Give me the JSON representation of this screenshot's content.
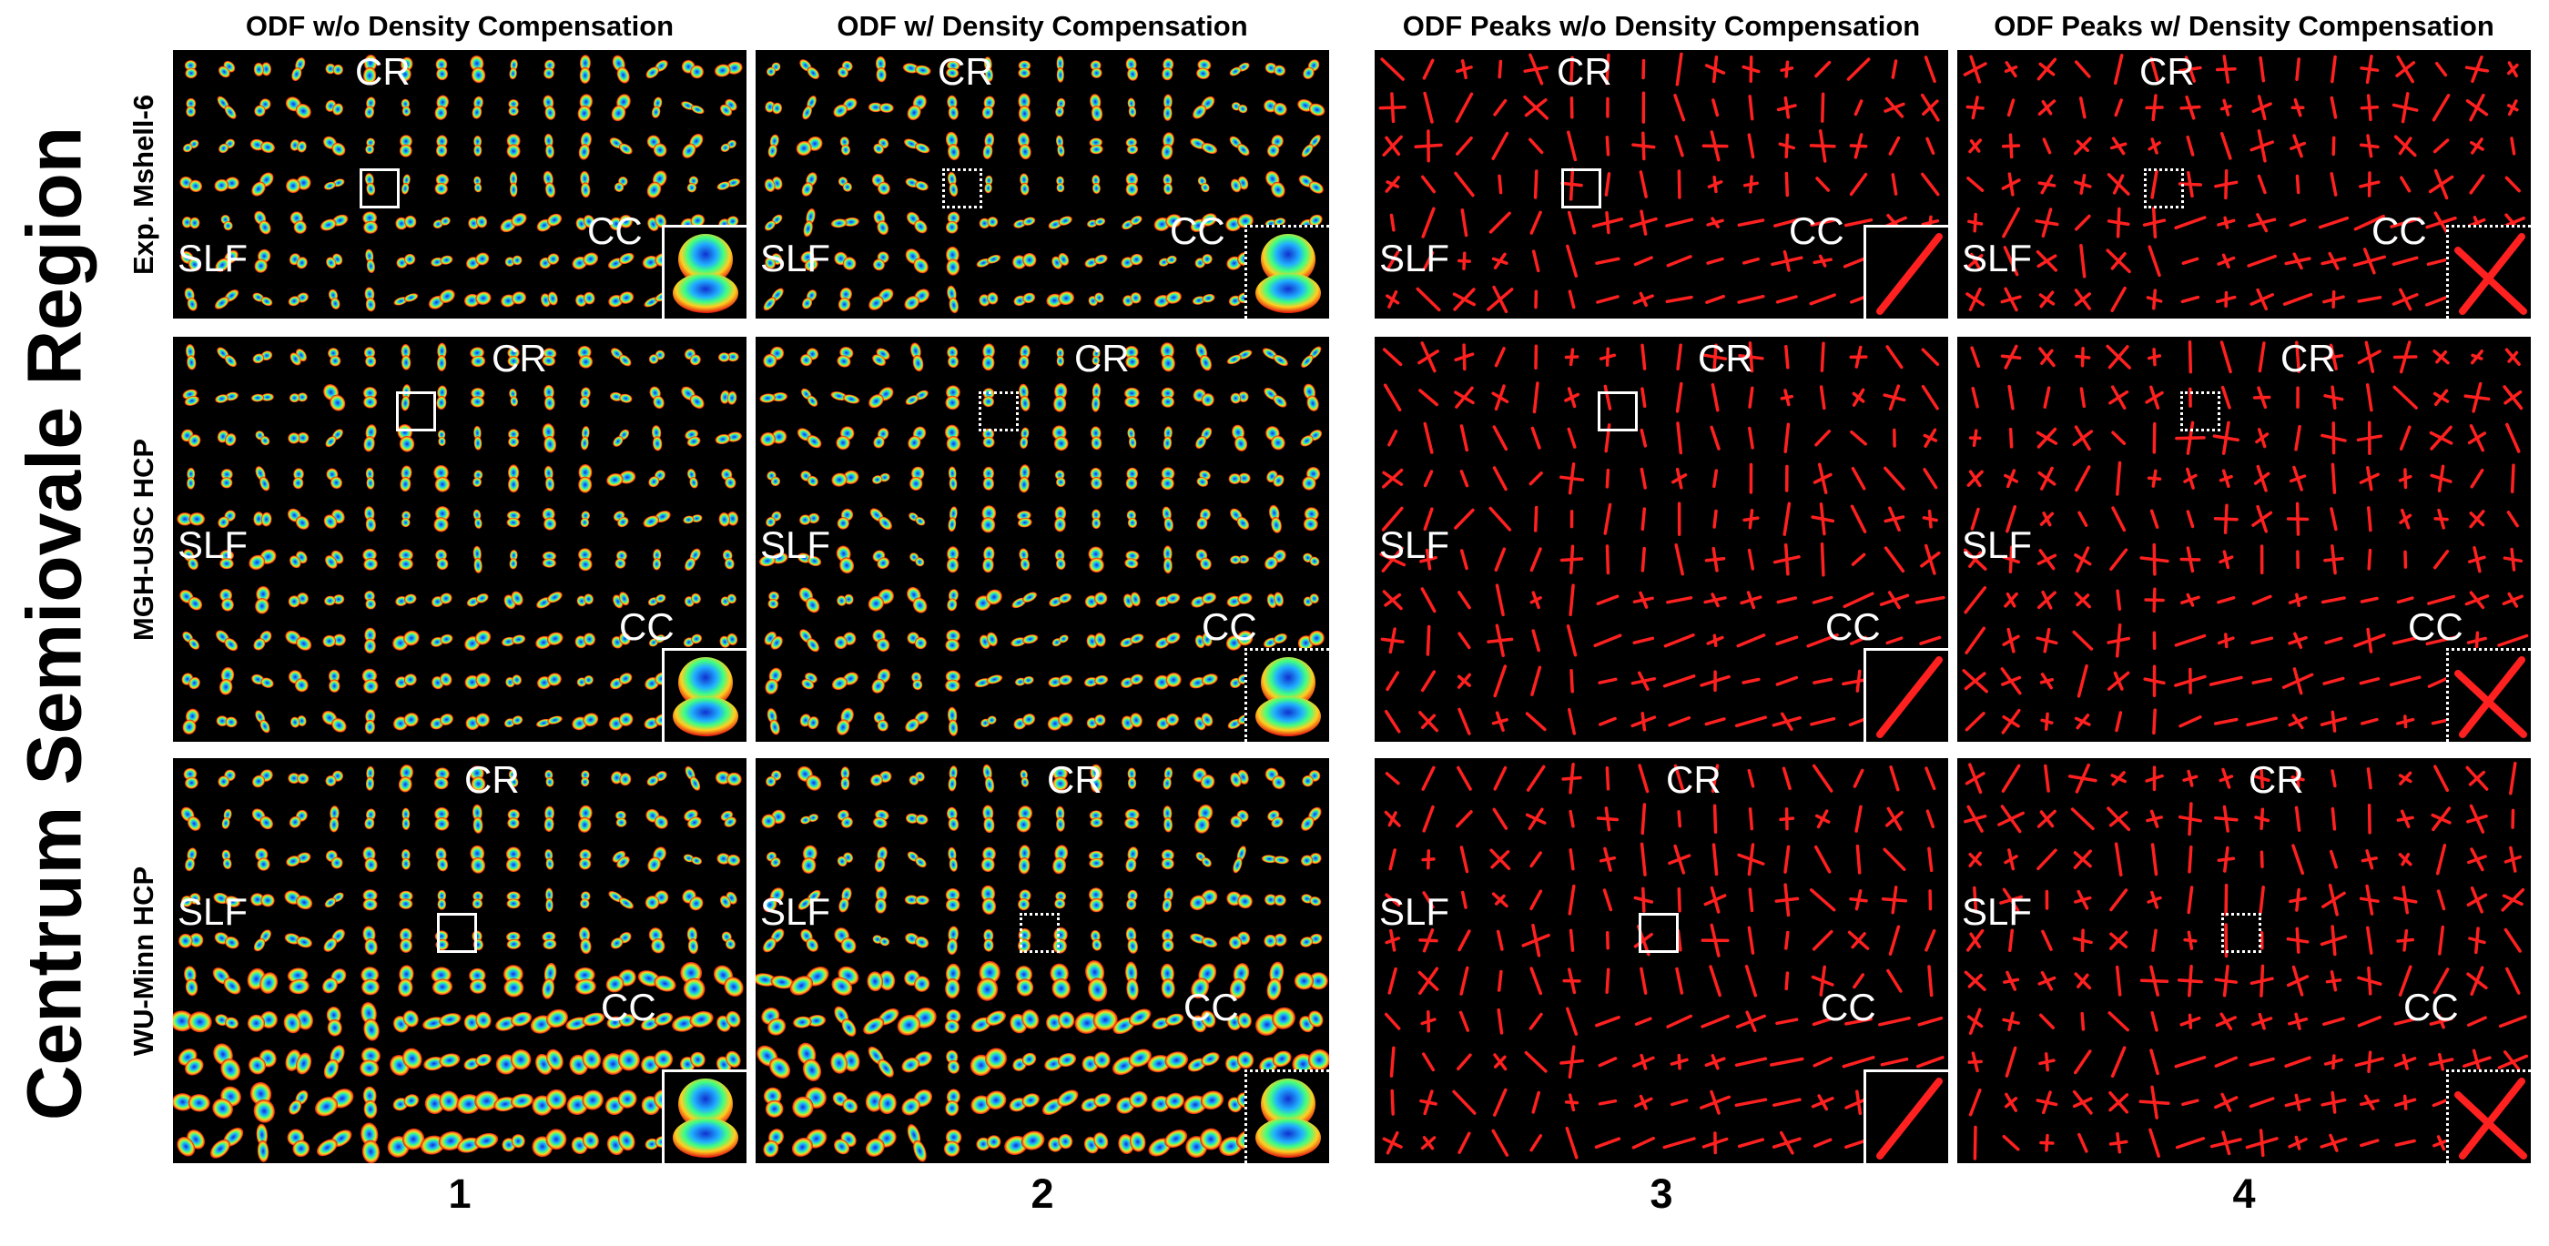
{
  "figure": {
    "big_title": "Centrum Semiovale Region",
    "columns": [
      {
        "title": "ODF w/o Density Compensation",
        "number": "1",
        "kind": "odf",
        "compensated": false
      },
      {
        "title": "ODF w/ Density Compensation",
        "number": "2",
        "kind": "odf",
        "compensated": true
      },
      {
        "title": "ODF Peaks w/o Density Compensation",
        "number": "3",
        "kind": "peaks",
        "compensated": false
      },
      {
        "title": "ODF Peaks w/ Density Compensation",
        "number": "4",
        "kind": "peaks",
        "compensated": true
      }
    ],
    "rows": [
      {
        "label": "Exp. Mshell-6"
      },
      {
        "label": "MGH-USC HCP"
      },
      {
        "label": "WU-Minn HCP"
      }
    ],
    "region_labels": {
      "cr": "CR",
      "slf": "SLF",
      "cc": "CC"
    },
    "colors": {
      "peak": "#ff2020",
      "panel_bg": "#000000",
      "label": "#ffffff"
    }
  }
}
